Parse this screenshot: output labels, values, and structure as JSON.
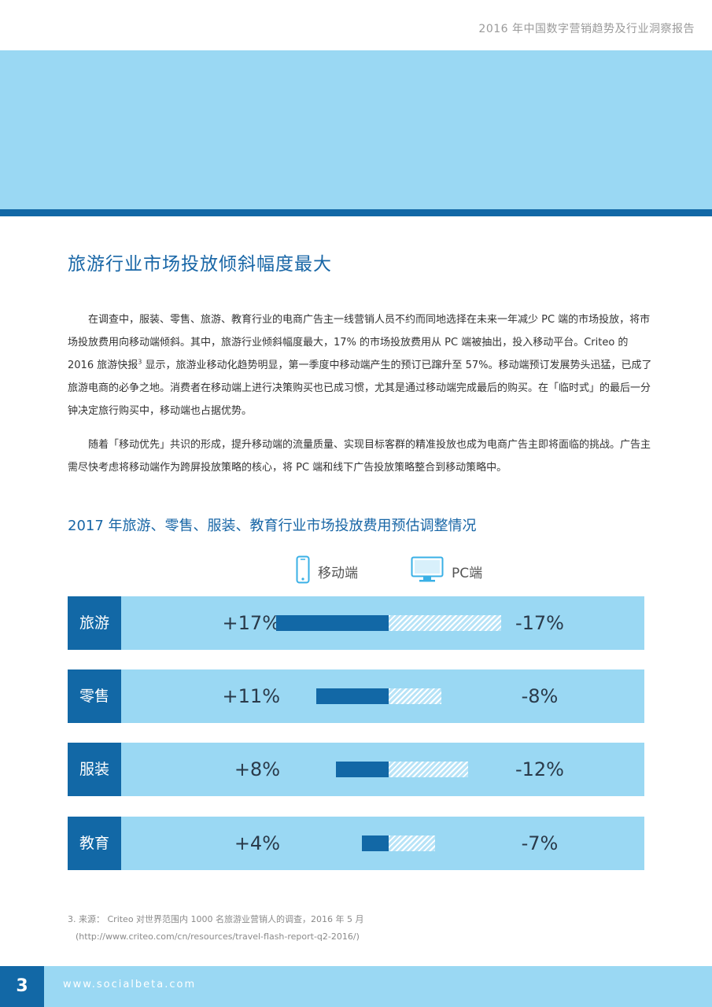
{
  "header": {
    "report_title": "2016 年中国数字营销趋势及行业洞察报告"
  },
  "section": {
    "title": "旅游行业市场投放倾斜幅度最大"
  },
  "body": {
    "p1_a": "在调查中，服装、零售、旅游、教育行业的电商广告主一线营销人员不约而同地选择在未来一年减少 PC 端的市场投放，将市场投放费用向移动端倾斜。其中，旅游行业倾斜幅度最大，17% 的市场投放费用从 PC 端被抽出，投入移动平台。Criteo 的 2016 旅游快报",
    "p1_sup": "3",
    "p1_b": "显示，旅游业移动化趋势明显，第一季度中移动端产生的预订已蹿升至 57%。移动端预订发展势头迅猛，已成了旅游电商的必争之地。消费者在移动端上进行决策购买也已成习惯，尤其是通过移动端完成最后的购买。在「临时式」的最后一分钟决定旅行购买中，移动端也占据优势。",
    "p2": "随着「移动优先」共识的形成，提升移动端的流量质量、实现目标客群的精准投放也成为电商广告主即将面临的挑战。广告主需尽快考虑将移动端作为跨屏投放策略的核心，将 PC 端和线下广告投放策略整合到移动策略中。"
  },
  "chart_data": {
    "type": "bar",
    "title": "2017 年旅游、零售、服装、教育行业市场投放费用预估调整情况",
    "categories": [
      "旅游",
      "零售",
      "服装",
      "教育"
    ],
    "series": [
      {
        "name": "移动端",
        "values": [
          17,
          11,
          8,
          4
        ],
        "labels": [
          "+17%",
          "+11%",
          "+8%",
          "+4%"
        ],
        "color": "#1268a6"
      },
      {
        "name": "PC端",
        "values": [
          -17,
          -8,
          -12,
          -7
        ],
        "labels": [
          "-17%",
          "-8%",
          "-12%",
          "-7%"
        ],
        "color": "#b7e3f7"
      }
    ]
  },
  "footnote": {
    "line1": "3. 来源： Criteo 对世界范围内 1000 名旅游业营销人的调查，2016 年 5 月",
    "line2": "(http://www.criteo.com/cn/resources/travel-flash-report-q2-2016/)"
  },
  "footer": {
    "page_number": "3",
    "site": "www.socialbeta.com"
  },
  "colors": {
    "dark_blue": "#1268a6",
    "light_blue": "#9ad8f3",
    "title_blue": "#1866a6"
  },
  "icons": {
    "mobile": "smartphone-icon",
    "pc": "monitor-icon"
  }
}
